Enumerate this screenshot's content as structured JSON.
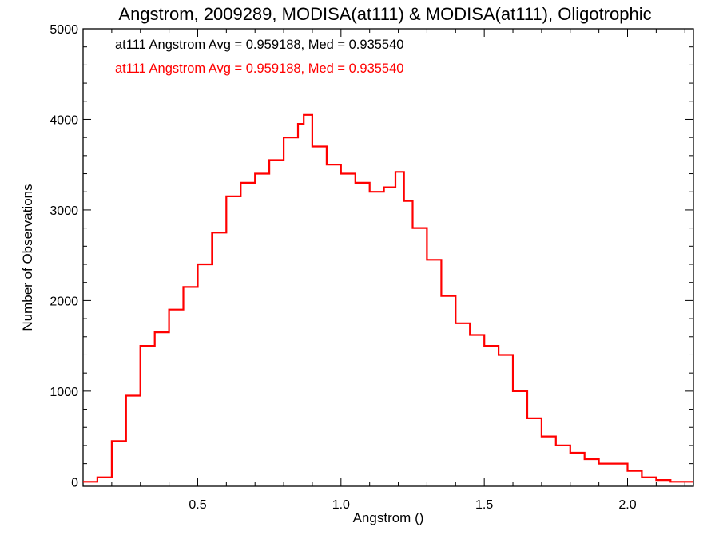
{
  "chart_data": {
    "type": "histogram",
    "title": "Angstrom, 2009289, MODISA(at111) & MODISA(at111), Oligotrophic",
    "xlabel": "Angstrom ()",
    "ylabel": "Number of Observations",
    "xlim": [
      0.1,
      2.23
    ],
    "ylim": [
      -50,
      5000
    ],
    "x_ticks": [
      0.5,
      1.0,
      1.5,
      2.0
    ],
    "x_tick_labels": [
      "0.5",
      "1.0",
      "1.5",
      "2.0"
    ],
    "x_minor_step": 0.1,
    "y_ticks": [
      0,
      1000,
      2000,
      3000,
      4000,
      5000
    ],
    "y_tick_labels": [
      "0",
      "1000",
      "2000",
      "3000",
      "4000",
      "5000"
    ],
    "y_minor_step": 200,
    "legend_placement": "top-left",
    "legend": [
      {
        "text": "at111 Angstrom Avg = 0.959188, Med = 0.935540",
        "color": "#000000"
      },
      {
        "text": "at111 Angstrom Avg = 0.959188, Med = 0.935540",
        "color": "#ff0000"
      }
    ],
    "series": [
      {
        "color": "#ff0000",
        "style": "step",
        "x": [
          0.1,
          0.15,
          0.2,
          0.25,
          0.3,
          0.35,
          0.4,
          0.45,
          0.5,
          0.55,
          0.6,
          0.65,
          0.7,
          0.75,
          0.8,
          0.85,
          0.87,
          0.9,
          0.95,
          1.0,
          1.05,
          1.1,
          1.15,
          1.19,
          1.22,
          1.25,
          1.3,
          1.35,
          1.4,
          1.45,
          1.5,
          1.55,
          1.6,
          1.65,
          1.7,
          1.75,
          1.8,
          1.85,
          1.9,
          1.95,
          2.0,
          2.05,
          2.1,
          2.15,
          2.2
        ],
        "y": [
          0,
          50,
          450,
          950,
          1500,
          1650,
          1900,
          2150,
          2400,
          2750,
          3150,
          3300,
          3400,
          3550,
          3800,
          3950,
          4050,
          3700,
          3500,
          3400,
          3300,
          3200,
          3250,
          3420,
          3100,
          2800,
          2450,
          2050,
          1750,
          1620,
          1500,
          1400,
          1000,
          700,
          500,
          400,
          320,
          250,
          200,
          200,
          120,
          50,
          20,
          0,
          0
        ]
      }
    ]
  }
}
